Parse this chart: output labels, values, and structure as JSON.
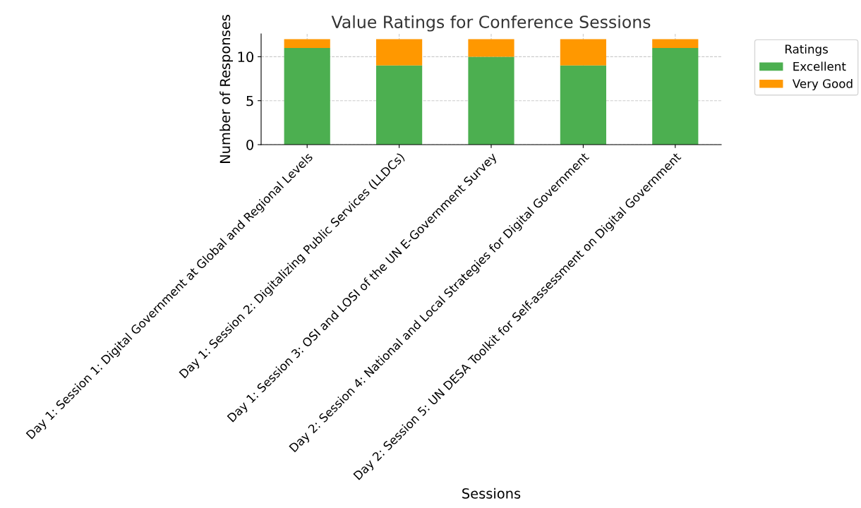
{
  "chart_data": {
    "type": "bar",
    "title": "Value Ratings for Conference Sessions",
    "xlabel": "Sessions",
    "ylabel": "Number of Responses",
    "legend_title": "Ratings",
    "categories": [
      "Day 1: Session 1: Digital Government at Global and Regional Levels",
      "Day 1: Session 2: Digitalizing Public Services (LLDCs)",
      "Day 1: Session 3: OSI and LOSI of the UN E-Government Survey",
      "Day 2: Session 4: National and Local Strategies for Digital Government",
      "Day 2: Session 5: UN DESA Toolkit for Self-assessment on Digital Government"
    ],
    "series": [
      {
        "name": "Excellent",
        "color": "#4caf50",
        "values": [
          11,
          9,
          10,
          9,
          11
        ]
      },
      {
        "name": "Very Good",
        "color": "#ff9800",
        "values": [
          1,
          3,
          2,
          3,
          1
        ]
      }
    ],
    "stacked": true,
    "ylim": [
      0,
      12.6
    ],
    "yticks": [
      0,
      5,
      10
    ],
    "grid": true,
    "legend": "top right"
  }
}
